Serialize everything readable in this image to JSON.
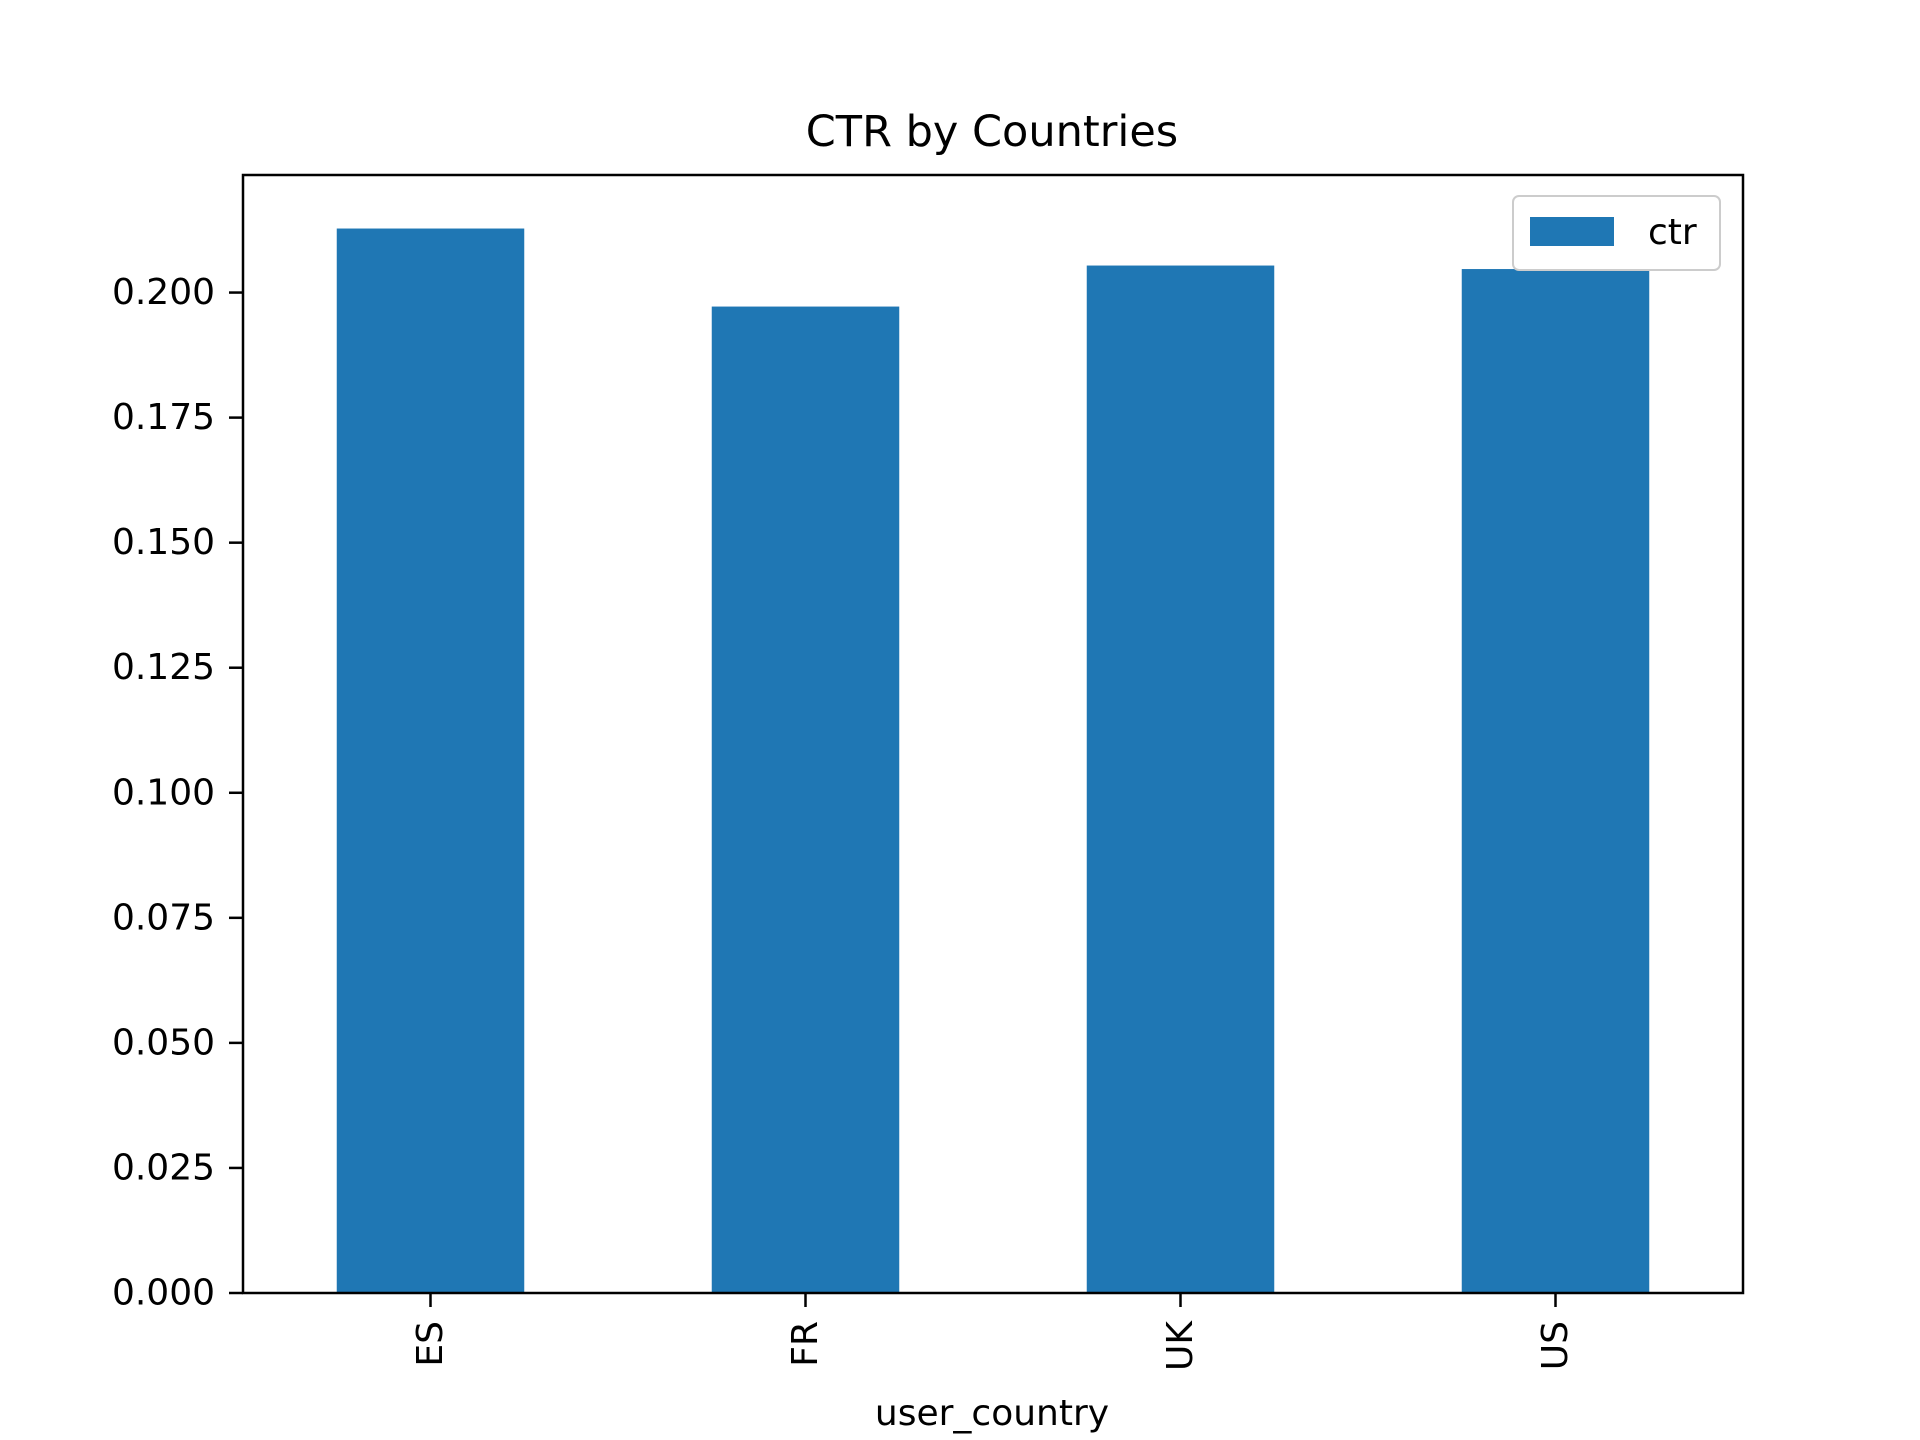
{
  "chart_data": {
    "type": "bar",
    "title": "CTR by Countries",
    "xlabel": "user_country",
    "ylabel": "",
    "categories": [
      "ES",
      "FR",
      "UK",
      "US"
    ],
    "series": [
      {
        "name": "ctr",
        "values": [
          0.2128,
          0.1972,
          0.2054,
          0.2047
        ],
        "color": "#1f77b4"
      }
    ],
    "ylim": [
      0,
      0.2235
    ],
    "yticks": [
      0.0,
      0.025,
      0.05,
      0.075,
      0.1,
      0.125,
      0.15,
      0.175,
      0.2
    ],
    "ytick_labels": [
      "0.000",
      "0.025",
      "0.050",
      "0.075",
      "0.100",
      "0.125",
      "0.150",
      "0.175",
      "0.200"
    ],
    "xtick_rotation": "vertical",
    "grid": false,
    "legend": {
      "position": "upper right",
      "entries": [
        "ctr"
      ]
    }
  }
}
